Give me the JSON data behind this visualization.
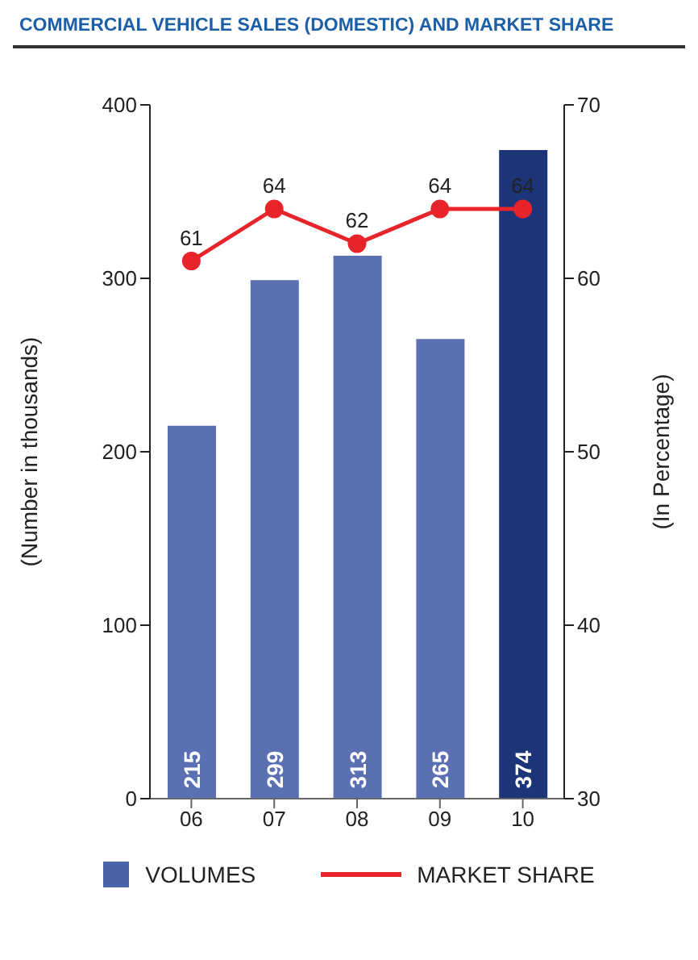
{
  "chart_data": {
    "type": "bar",
    "title": "COMMERCIAL VEHICLE SALES (DOMESTIC) AND MARKET SHARE",
    "ylabel": "(Number in thousands)",
    "y2label": "(In Percentage)",
    "categories": [
      "06",
      "07",
      "08",
      "09",
      "10"
    ],
    "series": [
      {
        "name": "VOLUMES",
        "color": "#4a62a8",
        "colors": [
          "#5a70b2",
          "#5a70b2",
          "#5a70b2",
          "#5a70b2",
          "#1c3578"
        ],
        "values": [
          215,
          299,
          313,
          265,
          374
        ]
      },
      {
        "name": "MARKET SHARE",
        "type": "line",
        "axis": "y2",
        "color": "#e8242b",
        "values": [
          61,
          64,
          62,
          64,
          64
        ]
      }
    ],
    "ylim": [
      0,
      400
    ],
    "yticks": [
      0,
      100,
      200,
      300,
      400
    ],
    "y2lim": [
      30,
      70
    ],
    "y2ticks": [
      30,
      40,
      50,
      60,
      70
    ],
    "data_labels": true,
    "marker": "circle",
    "legend": "bottom"
  }
}
